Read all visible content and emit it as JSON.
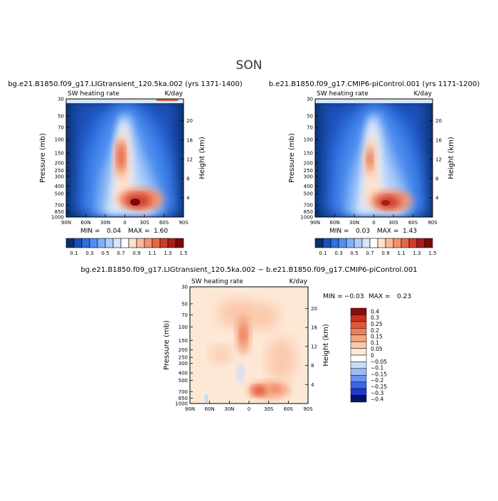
{
  "figure": {
    "title": "SON"
  },
  "colors": {
    "panel_scale": [
      "#08306b",
      "#1c4fb8",
      "#2f6fe0",
      "#4f8ff0",
      "#7fb0f5",
      "#aecdf8",
      "#d6e6fb",
      "#ffffff",
      "#fde3cf",
      "#f9b99a",
      "#f29070",
      "#e5674a",
      "#d03d2b",
      "#a81d1a",
      "#7a0b0b"
    ],
    "diff_scale": [
      "#06136e",
      "#1f3bcc",
      "#3d66e6",
      "#6a93ef",
      "#9cbbf4",
      "#c7dbf9",
      "#ffffff",
      "#fde8d6",
      "#fbc8aa",
      "#f6a582",
      "#ee7e5c",
      "#e2563b",
      "#c9301f",
      "#8c0c0c"
    ]
  },
  "chart_data": [
    {
      "type": "heatmap",
      "panel": "left",
      "title": "bg.e21.B1850.f09_g17.LIGtransient_120.5ka.002 (yrs 1371-1400)",
      "subtitle_left": "SW heating rate",
      "subtitle_right": "K/day",
      "ylabel": "Pressure (mb)",
      "ylabel_right": "Height (km)",
      "y_ticks": [
        "30",
        "50",
        "70",
        "100",
        "150",
        "200",
        "250",
        "300",
        "400",
        "500",
        "700",
        "850",
        "1000"
      ],
      "y_ticks_right": [
        "20",
        "16",
        "12",
        "8",
        "4"
      ],
      "x_ticks": [
        "90N",
        "60N",
        "30N",
        "0",
        "30S",
        "60S",
        "90S"
      ],
      "min_label": "MIN =",
      "min_value": "0.04",
      "max_label": "MAX =",
      "max_value": "1.60",
      "colorbar_labels": [
        "0.1",
        "0.3",
        "0.5",
        "0.7",
        "0.9",
        "1.1",
        "1.3",
        "1.5"
      ],
      "x_range": [
        90,
        -90
      ],
      "y_range": [
        1000,
        30
      ],
      "features": [
        {
          "lat": -5,
          "p": 850,
          "value": 1.6
        },
        {
          "lat": 5,
          "p": 480,
          "value": 1.4
        },
        {
          "lat": -40,
          "p": 860,
          "value": 1.1
        },
        {
          "lat": 0,
          "p": 250,
          "value": 0.8
        },
        {
          "lat": 60,
          "p": 800,
          "value": 0.4
        },
        {
          "lat": -75,
          "p": 700,
          "value": 0.3
        }
      ]
    },
    {
      "type": "heatmap",
      "panel": "right",
      "title": "b.e21.B1850.f09_g17.CMIP6-piControl.001 (yrs 1171-1200)",
      "subtitle_left": "SW heating rate",
      "subtitle_right": "K/day",
      "ylabel": "Pressure (mb)",
      "ylabel_right": "Height (km)",
      "y_ticks": [
        "30",
        "50",
        "70",
        "100",
        "150",
        "200",
        "250",
        "300",
        "400",
        "500",
        "700",
        "850",
        "1000"
      ],
      "y_ticks_right": [
        "20",
        "16",
        "12",
        "8",
        "4"
      ],
      "x_ticks": [
        "90N",
        "60N",
        "30N",
        "0",
        "30S",
        "60S",
        "90S"
      ],
      "min_label": "MIN =",
      "min_value": "0.03",
      "max_label": "MAX =",
      "max_value": "1.43",
      "colorbar_labels": [
        "0.1",
        "0.3",
        "0.5",
        "0.7",
        "0.9",
        "1.1",
        "1.3",
        "1.5"
      ],
      "x_range": [
        90,
        -90
      ],
      "y_range": [
        1000,
        30
      ],
      "features": [
        {
          "lat": -5,
          "p": 850,
          "value": 1.43
        },
        {
          "lat": 5,
          "p": 480,
          "value": 1.2
        },
        {
          "lat": -40,
          "p": 860,
          "value": 1.0
        },
        {
          "lat": 0,
          "p": 250,
          "value": 0.7
        },
        {
          "lat": 60,
          "p": 800,
          "value": 0.4
        },
        {
          "lat": -75,
          "p": 700,
          "value": 0.3
        }
      ]
    },
    {
      "type": "heatmap",
      "panel": "difference",
      "title": "bg.e21.B1850.f09_g17.LIGtransient_120.5ka.002 − b.e21.B1850.f09_g17.CMIP6-piControl.001",
      "subtitle_left": "SW heating rate",
      "subtitle_right": "K/day",
      "ylabel": "Pressure (mb)",
      "ylabel_right": "Height (km)",
      "y_ticks": [
        "30",
        "50",
        "70",
        "100",
        "150",
        "200",
        "250",
        "300",
        "400",
        "500",
        "700",
        "850",
        "1000"
      ],
      "y_ticks_right": [
        "20",
        "16",
        "12",
        "8",
        "4"
      ],
      "x_ticks": [
        "90N",
        "60N",
        "30N",
        "0",
        "30S",
        "60S",
        "90S"
      ],
      "min_label": "MIN =",
      "min_value": "−0.03",
      "max_label": "MAX =",
      "max_value": "0.23",
      "colorbar_labels": [
        "0.4",
        "0.3",
        "0.25",
        "0.2",
        "0.15",
        "0.1",
        "0.05",
        "0",
        "−0.05",
        "−0.1",
        "−0.15",
        "−0.2",
        "−0.25",
        "−0.3",
        "−0.4"
      ],
      "x_range": [
        90,
        -90
      ],
      "y_range": [
        1000,
        30
      ],
      "features": [
        {
          "lat": -5,
          "p": 860,
          "value": 0.23
        },
        {
          "lat": 5,
          "p": 460,
          "value": 0.15
        },
        {
          "lat": 0,
          "p": 200,
          "value": 0.1
        },
        {
          "lat": -40,
          "p": 720,
          "value": 0.1
        },
        {
          "lat": 30,
          "p": 300,
          "value": 0.07
        },
        {
          "lat": 10,
          "p": 650,
          "value": -0.03
        }
      ]
    }
  ]
}
